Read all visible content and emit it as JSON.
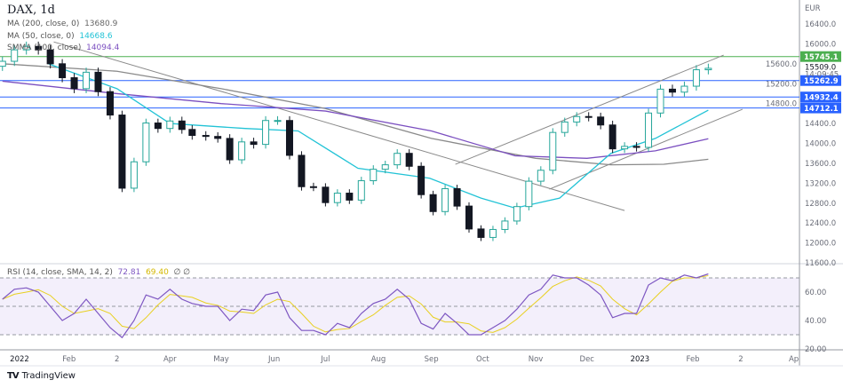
{
  "header": {
    "symbol_title": "DAX, 1d",
    "currency": "EUR"
  },
  "legend": {
    "ma200": {
      "label": "MA (200, close, 0)",
      "value": "13680.9",
      "color": "#8a8a8a"
    },
    "ma50": {
      "label": "MA (50, close, 0)",
      "value": "14668.6",
      "color": "#22c3d6"
    },
    "smma": {
      "label": "SMMA (100, close)",
      "value": "14094.4",
      "color": "#7b4fc0"
    },
    "rsi": {
      "label": "RSI (14, close, SMA, 14, 2)",
      "value": "72.81",
      "sma_value": "69.40",
      "extra": "∅ ∅",
      "color": "#7e57c2",
      "sma_color": "#e8d020"
    }
  },
  "price_labels": [
    {
      "text": "15745.1",
      "price": 15745.1,
      "bg": "#4caf50",
      "fg": "#ffffff"
    },
    {
      "text": "15262.9",
      "price": 15262.9,
      "bg": "#2962ff",
      "fg": "#ffffff"
    },
    {
      "text": "14932.4",
      "price": 14932.4,
      "bg": "#2962ff",
      "fg": "#ffffff"
    },
    {
      "text": "14712.1",
      "price": 14712.1,
      "bg": "#2962ff",
      "fg": "#ffffff"
    }
  ],
  "last_price": {
    "text": "15509.0",
    "countdown": "14:09:45"
  },
  "brand": {
    "name": "TradingView"
  },
  "chart_data": {
    "type": "candlestick",
    "yticks": [
      "16400.0",
      "16000.0",
      "15600.0",
      "15200.0",
      "14800.0",
      "14400.0",
      "14000.0",
      "13600.0",
      "13200.0",
      "12800.0",
      "12400.0",
      "12000.0",
      "11600.0"
    ],
    "ylim": [
      11600,
      16400
    ],
    "xticks": [
      [
        "2022-01-03",
        "2022"
      ],
      [
        "2022-02-01",
        "Feb"
      ],
      [
        "2022-03-01",
        "2"
      ],
      [
        "2022-04-01",
        "Apr"
      ],
      [
        "2022-05-01",
        "May"
      ],
      [
        "2022-06-01",
        "Jun"
      ],
      [
        "2022-07-01",
        "Jul"
      ],
      [
        "2022-08-01",
        "Aug"
      ],
      [
        "2022-09-01",
        "Sep"
      ],
      [
        "2022-10-01",
        "Oct"
      ],
      [
        "2022-11-01",
        "Nov"
      ],
      [
        "2022-12-01",
        "Dec"
      ],
      [
        "2023-01-01",
        "2023"
      ],
      [
        "2023-02-01",
        "Feb"
      ],
      [
        "2023-03-01",
        "2"
      ],
      [
        "2023-04-01",
        "Ap"
      ]
    ],
    "up_color": "#26a69a",
    "down_color": "#131722",
    "dates": [
      "2021-12-24",
      "2021-12-31",
      "2022-01-07",
      "2022-01-14",
      "2022-01-21",
      "2022-01-28",
      "2022-02-04",
      "2022-02-11",
      "2022-02-18",
      "2022-02-25",
      "2022-03-04",
      "2022-03-11",
      "2022-03-18",
      "2022-03-25",
      "2022-04-01",
      "2022-04-08",
      "2022-04-14",
      "2022-04-22",
      "2022-04-29",
      "2022-05-06",
      "2022-05-13",
      "2022-05-20",
      "2022-05-27",
      "2022-06-03",
      "2022-06-10",
      "2022-06-17",
      "2022-06-24",
      "2022-07-01",
      "2022-07-08",
      "2022-07-15",
      "2022-07-22",
      "2022-07-29",
      "2022-08-05",
      "2022-08-12",
      "2022-08-19",
      "2022-08-26",
      "2022-09-02",
      "2022-09-09",
      "2022-09-16",
      "2022-09-23",
      "2022-09-30",
      "2022-10-07",
      "2022-10-14",
      "2022-10-21",
      "2022-10-28",
      "2022-11-04",
      "2022-11-11",
      "2022-11-18",
      "2022-11-25",
      "2022-12-02",
      "2022-12-09",
      "2022-12-16",
      "2022-12-23",
      "2022-12-30",
      "2023-01-06",
      "2023-01-13",
      "2023-01-20",
      "2023-01-27",
      "2023-02-03",
      "2023-02-10"
    ],
    "close": [
      15650,
      15880,
      15950,
      15880,
      15600,
      15320,
      15100,
      15430,
      15040,
      14570,
      13100,
      13630,
      14410,
      14300,
      14450,
      14280,
      14160,
      14140,
      14100,
      13670,
      14030,
      13980,
      14460,
      14460,
      13760,
      13130,
      13120,
      12810,
      13000,
      12860,
      13250,
      13480,
      13570,
      13800,
      13540,
      12970,
      12630,
      13090,
      12740,
      12280,
      12110,
      12270,
      12440,
      12730,
      13240,
      13460,
      14220,
      14430,
      14540,
      14530,
      14370,
      13890,
      13940,
      13920,
      14610,
      15090,
      15030,
      15150,
      15480,
      15509
    ],
    "ma200": [
      [
        "2021-12-24",
        15600
      ],
      [
        "2022-03-01",
        15450
      ],
      [
        "2022-05-01",
        15100
      ],
      [
        "2022-07-01",
        14700
      ],
      [
        "2022-09-01",
        14100
      ],
      [
        "2022-11-01",
        13700
      ],
      [
        "2022-12-15",
        13570
      ],
      [
        "2023-01-15",
        13580
      ],
      [
        "2023-02-10",
        13680.9
      ]
    ],
    "smma": [
      [
        "2021-12-24",
        15250
      ],
      [
        "2022-03-01",
        15000
      ],
      [
        "2022-05-01",
        14800
      ],
      [
        "2022-07-01",
        14650
      ],
      [
        "2022-09-01",
        14250
      ],
      [
        "2022-10-20",
        13750
      ],
      [
        "2022-12-01",
        13700
      ],
      [
        "2023-01-10",
        13850
      ],
      [
        "2023-02-10",
        14094.4
      ]
    ],
    "ma50": [
      [
        "2022-01-20",
        15600
      ],
      [
        "2022-03-01",
        15100
      ],
      [
        "2022-04-01",
        14400
      ],
      [
        "2022-05-15",
        14300
      ],
      [
        "2022-06-15",
        14250
      ],
      [
        "2022-07-20",
        13500
      ],
      [
        "2022-08-31",
        13300
      ],
      [
        "2022-09-30",
        12900
      ],
      [
        "2022-10-20",
        12700
      ],
      [
        "2022-11-15",
        12900
      ],
      [
        "2022-12-15",
        13800
      ],
      [
        "2023-01-10",
        14100
      ],
      [
        "2023-02-10",
        14668.6
      ]
    ],
    "trendlines": [
      {
        "color": "#8a8a8a",
        "points": [
          [
            "2022-01-23",
            16040
          ],
          [
            "2022-12-23",
            12650
          ]
        ]
      },
      {
        "color": "#8a8a8a",
        "points": [
          [
            "2022-09-15",
            13580
          ],
          [
            "2023-02-19",
            15775
          ]
        ]
      },
      {
        "color": "#8a8a8a",
        "points": [
          [
            "2022-11-09",
            13080
          ],
          [
            "2023-03-02",
            14686
          ]
        ]
      }
    ],
    "horizontal_levels": [
      {
        "price": 15745.1,
        "color": "#4caf50"
      },
      {
        "price": 15262.9,
        "color": "#2962ff"
      },
      {
        "price": 14932.4,
        "color": "#2962ff"
      },
      {
        "price": 14712.1,
        "color": "#2962ff"
      }
    ],
    "rsi": {
      "yticks": [
        "60.00",
        "40.00",
        "20.00"
      ],
      "levels": [
        70,
        50,
        30
      ],
      "values": [
        55,
        62,
        63,
        60,
        50,
        40,
        45,
        55,
        45,
        35,
        28,
        40,
        58,
        55,
        62,
        55,
        52,
        50,
        50,
        40,
        48,
        47,
        58,
        60,
        42,
        33,
        33,
        30,
        38,
        35,
        45,
        52,
        55,
        62,
        55,
        38,
        34,
        45,
        38,
        30,
        30,
        35,
        40,
        48,
        58,
        62,
        72,
        70,
        70,
        65,
        58,
        42,
        45,
        45,
        65,
        70,
        68,
        72,
        70,
        72.81
      ]
    }
  }
}
